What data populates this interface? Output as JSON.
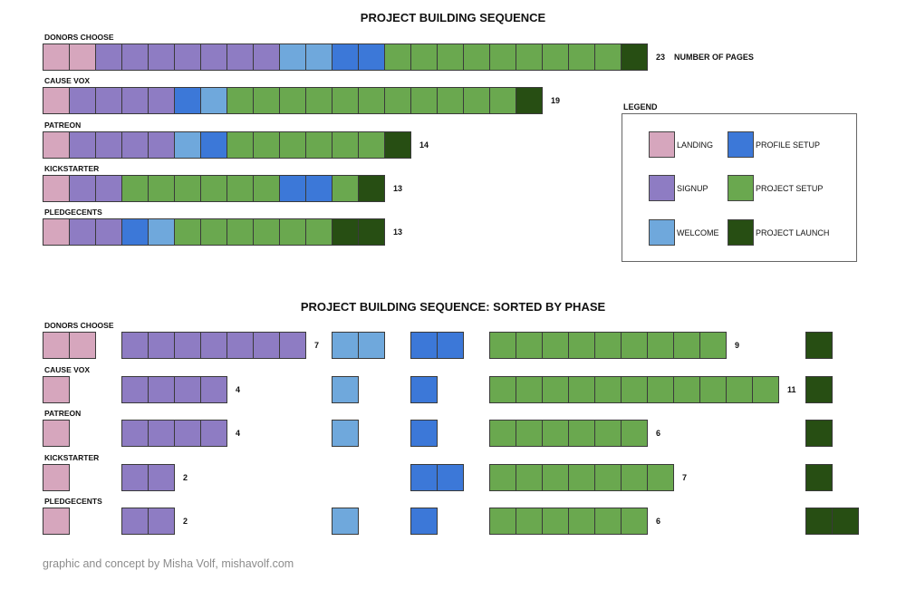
{
  "footer": "graphic and concept by Misha Volf, mishavolf.com",
  "legend": {
    "title": "LEGEND",
    "items": [
      {
        "key": "L",
        "label": "LANDING",
        "color": "#d6a6bd"
      },
      {
        "key": "P",
        "label": "PROFILE SETUP",
        "color": "#3c78d8"
      },
      {
        "key": "S",
        "label": "SIGNUP",
        "color": "#8e7cc3"
      },
      {
        "key": "G",
        "label": "PROJECT SETUP",
        "color": "#6aa84f"
      },
      {
        "key": "W",
        "label": "WELCOME",
        "color": "#6fa8dc"
      },
      {
        "key": "D",
        "label": "PROJECT LAUNCH",
        "color": "#274e13"
      }
    ]
  },
  "chart_data": [
    {
      "type": "table",
      "title": "PROJECT BUILDING SEQUENCE",
      "total_label": "NUMBER OF PAGES",
      "rows": [
        {
          "name": "DONORS CHOOSE",
          "sequence": [
            "L",
            "L",
            "S",
            "S",
            "S",
            "S",
            "S",
            "S",
            "S",
            "W",
            "W",
            "P",
            "P",
            "G",
            "G",
            "G",
            "G",
            "G",
            "G",
            "G",
            "G",
            "G",
            "D"
          ],
          "total": 23
        },
        {
          "name": "CAUSE VOX",
          "sequence": [
            "L",
            "S",
            "S",
            "S",
            "S",
            "P",
            "W",
            "G",
            "G",
            "G",
            "G",
            "G",
            "G",
            "G",
            "G",
            "G",
            "G",
            "G",
            "D"
          ],
          "total": 19
        },
        {
          "name": "PATREON",
          "sequence": [
            "L",
            "S",
            "S",
            "S",
            "S",
            "W",
            "P",
            "G",
            "G",
            "G",
            "G",
            "G",
            "G",
            "D"
          ],
          "total": 14
        },
        {
          "name": "KICKSTARTER",
          "sequence": [
            "L",
            "S",
            "S",
            "G",
            "G",
            "G",
            "G",
            "G",
            "G",
            "P",
            "P",
            "G",
            "D"
          ],
          "total": 13
        },
        {
          "name": "PLEDGECENTS",
          "sequence": [
            "L",
            "S",
            "S",
            "P",
            "W",
            "G",
            "G",
            "G",
            "G",
            "G",
            "G",
            "D",
            "D"
          ],
          "total": 13
        }
      ]
    },
    {
      "type": "table",
      "title": "PROJECT BUILDING SEQUENCE: SORTED BY PHASE",
      "phases": [
        "L",
        "S",
        "W",
        "P",
        "G",
        "D"
      ],
      "labeled_phases": [
        "S",
        "G"
      ],
      "rows": [
        {
          "name": "DONORS CHOOSE",
          "counts": {
            "L": 2,
            "S": 7,
            "W": 2,
            "P": 2,
            "G": 9,
            "D": 1
          }
        },
        {
          "name": "CAUSE VOX",
          "counts": {
            "L": 1,
            "S": 4,
            "W": 1,
            "P": 1,
            "G": 11,
            "D": 1
          }
        },
        {
          "name": "PATREON",
          "counts": {
            "L": 1,
            "S": 4,
            "W": 1,
            "P": 1,
            "G": 6,
            "D": 1
          }
        },
        {
          "name": "KICKSTARTER",
          "counts": {
            "L": 1,
            "S": 2,
            "W": 0,
            "P": 2,
            "G": 7,
            "D": 1
          }
        },
        {
          "name": "PLEDGECENTS",
          "counts": {
            "L": 1,
            "S": 2,
            "W": 1,
            "P": 1,
            "G": 6,
            "D": 2
          }
        }
      ]
    }
  ]
}
